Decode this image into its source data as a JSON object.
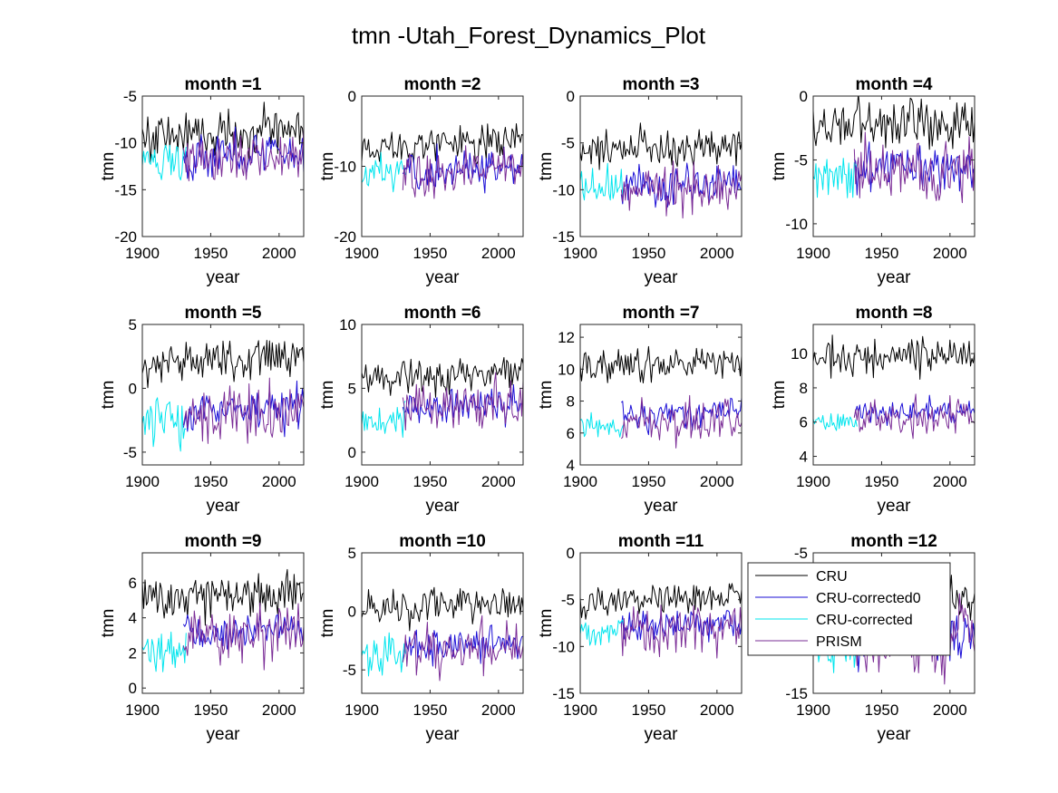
{
  "figure": {
    "title": "tmn -Utah_Forest_Dynamics_Plot"
  },
  "legend": {
    "placement": "over bottom-right subplot",
    "entries": [
      {
        "label": "CRU",
        "color": "#000000"
      },
      {
        "label": "CRU-corrected0",
        "color": "#1a0dd6"
      },
      {
        "label": "CRU-corrected",
        "color": "#00e5ee"
      },
      {
        "label": "PRISM",
        "color": "#7a2c96"
      }
    ]
  },
  "chart_data": [
    {
      "type": "line",
      "title": "month =1",
      "xlabel": "year",
      "ylabel": "tmn",
      "xlim": [
        1900,
        2018
      ],
      "ylim": [
        -20,
        -5
      ],
      "xticks": [
        1900,
        1950,
        2000
      ],
      "yticks": [
        -20,
        -15,
        -10,
        -5
      ],
      "series": [
        {
          "name": "CRU",
          "mean": -8.9,
          "amp": 1.9,
          "from": 1900
        },
        {
          "name": "CRU-corrected0",
          "mean": -11.3,
          "amp": 1.9,
          "from": 1930
        },
        {
          "name": "CRU-corrected",
          "mean": -11.5,
          "amp": 1.6,
          "from": 1900,
          "to": 1932
        },
        {
          "name": "PRISM",
          "mean": -11.6,
          "amp": 2.2,
          "from": 1930
        }
      ]
    },
    {
      "type": "line",
      "title": "month =2",
      "xlabel": "year",
      "ylabel": "tmn",
      "xlim": [
        1900,
        2018
      ],
      "ylim": [
        -20,
        0
      ],
      "xticks": [
        1900,
        1950,
        2000
      ],
      "yticks": [
        -20,
        -10,
        0
      ],
      "series": [
        {
          "name": "CRU",
          "mean": -6.8,
          "amp": 1.8,
          "from": 1900
        },
        {
          "name": "CRU-corrected0",
          "mean": -10.4,
          "amp": 2.0,
          "from": 1930
        },
        {
          "name": "CRU-corrected",
          "mean": -10.6,
          "amp": 2.0,
          "from": 1900,
          "to": 1932
        },
        {
          "name": "PRISM",
          "mean": -10.7,
          "amp": 2.4,
          "from": 1930
        }
      ]
    },
    {
      "type": "line",
      "title": "month =3",
      "xlabel": "year",
      "ylabel": "tmn",
      "xlim": [
        1900,
        2018
      ],
      "ylim": [
        -15,
        0
      ],
      "xticks": [
        1900,
        1950,
        2000
      ],
      "yticks": [
        -15,
        -10,
        -5,
        0
      ],
      "series": [
        {
          "name": "CRU",
          "mean": -5.5,
          "amp": 1.4,
          "from": 1900
        },
        {
          "name": "CRU-corrected0",
          "mean": -9.6,
          "amp": 1.5,
          "from": 1930
        },
        {
          "name": "CRU-corrected",
          "mean": -9.4,
          "amp": 1.5,
          "from": 1900,
          "to": 1932
        },
        {
          "name": "PRISM",
          "mean": -9.9,
          "amp": 1.8,
          "from": 1930
        }
      ]
    },
    {
      "type": "line",
      "title": "month =4",
      "xlabel": "year",
      "ylabel": "tmn",
      "xlim": [
        1900,
        2018
      ],
      "ylim": [
        -11,
        0
      ],
      "xticks": [
        1900,
        1950,
        2000
      ],
      "yticks": [
        -10,
        -5,
        0
      ],
      "series": [
        {
          "name": "CRU",
          "mean": -2.2,
          "amp": 1.4,
          "from": 1900
        },
        {
          "name": "CRU-corrected0",
          "mean": -5.6,
          "amp": 1.4,
          "from": 1930
        },
        {
          "name": "CRU-corrected",
          "mean": -6.2,
          "amp": 1.5,
          "from": 1900,
          "to": 1932
        },
        {
          "name": "PRISM",
          "mean": -6.0,
          "amp": 1.8,
          "from": 1930
        }
      ]
    },
    {
      "type": "line",
      "title": "month =5",
      "xlabel": "year",
      "ylabel": "tmn",
      "xlim": [
        1900,
        2018
      ],
      "ylim": [
        -6,
        5
      ],
      "xticks": [
        1900,
        1950,
        2000
      ],
      "yticks": [
        -5,
        0,
        5
      ],
      "series": [
        {
          "name": "CRU",
          "mean": 2.2,
          "amp": 1.2,
          "from": 1900
        },
        {
          "name": "CRU-corrected0",
          "mean": -1.7,
          "amp": 1.2,
          "from": 1930
        },
        {
          "name": "CRU-corrected",
          "mean": -2.3,
          "amp": 1.5,
          "from": 1900,
          "to": 1932
        },
        {
          "name": "PRISM",
          "mean": -2.0,
          "amp": 1.5,
          "from": 1930
        }
      ]
    },
    {
      "type": "line",
      "title": "month =6",
      "xlabel": "year",
      "ylabel": "tmn",
      "xlim": [
        1900,
        2018
      ],
      "ylim": [
        -1,
        10
      ],
      "xticks": [
        1900,
        1950,
        2000
      ],
      "yticks": [
        0,
        5,
        10
      ],
      "series": [
        {
          "name": "CRU",
          "mean": 6.0,
          "amp": 1.0,
          "from": 1900
        },
        {
          "name": "CRU-corrected0",
          "mean": 3.6,
          "amp": 1.0,
          "from": 1930
        },
        {
          "name": "CRU-corrected",
          "mean": 2.8,
          "amp": 1.1,
          "from": 1900,
          "to": 1932
        },
        {
          "name": "PRISM",
          "mean": 3.6,
          "amp": 1.4,
          "from": 1930
        }
      ]
    },
    {
      "type": "line",
      "title": "month =7",
      "xlabel": "year",
      "ylabel": "tmn",
      "xlim": [
        1900,
        2018
      ],
      "ylim": [
        4,
        12.8
      ],
      "xticks": [
        1900,
        1950,
        2000
      ],
      "yticks": [
        4,
        6,
        8,
        10,
        12
      ],
      "series": [
        {
          "name": "CRU",
          "mean": 10.3,
          "amp": 0.8,
          "from": 1900
        },
        {
          "name": "CRU-corrected0",
          "mean": 7.2,
          "amp": 0.7,
          "from": 1930
        },
        {
          "name": "CRU-corrected",
          "mean": 6.5,
          "amp": 0.6,
          "from": 1900,
          "to": 1932
        },
        {
          "name": "PRISM",
          "mean": 6.9,
          "amp": 1.1,
          "from": 1930
        }
      ]
    },
    {
      "type": "line",
      "title": "month =8",
      "xlabel": "year",
      "ylabel": "tmn",
      "xlim": [
        1900,
        2018
      ],
      "ylim": [
        3.5,
        11.7
      ],
      "xticks": [
        1900,
        1950,
        2000
      ],
      "yticks": [
        4,
        6,
        8,
        10
      ],
      "series": [
        {
          "name": "CRU",
          "mean": 9.8,
          "amp": 0.8,
          "from": 1900
        },
        {
          "name": "CRU-corrected0",
          "mean": 6.6,
          "amp": 0.5,
          "from": 1930
        },
        {
          "name": "CRU-corrected",
          "mean": 6.1,
          "amp": 0.4,
          "from": 1900,
          "to": 1932
        },
        {
          "name": "PRISM",
          "mean": 6.3,
          "amp": 0.8,
          "from": 1930
        }
      ]
    },
    {
      "type": "line",
      "title": "month =9",
      "xlabel": "year",
      "ylabel": "tmn",
      "xlim": [
        1900,
        2018
      ],
      "ylim": [
        -0.3,
        7.7
      ],
      "xticks": [
        1900,
        1950,
        2000
      ],
      "yticks": [
        0,
        2,
        4,
        6
      ],
      "series": [
        {
          "name": "CRU",
          "mean": 5.3,
          "amp": 1.0,
          "from": 1900
        },
        {
          "name": "CRU-corrected0",
          "mean": 3.3,
          "amp": 0.7,
          "from": 1930
        },
        {
          "name": "CRU-corrected",
          "mean": 2.4,
          "amp": 0.9,
          "from": 1900,
          "to": 1932
        },
        {
          "name": "PRISM",
          "mean": 2.8,
          "amp": 1.2,
          "from": 1930
        }
      ]
    },
    {
      "type": "line",
      "title": "month =10",
      "xlabel": "year",
      "ylabel": "tmn",
      "xlim": [
        1900,
        2018
      ],
      "ylim": [
        -7,
        5
      ],
      "xticks": [
        1900,
        1950,
        2000
      ],
      "yticks": [
        -5,
        0,
        5
      ],
      "series": [
        {
          "name": "CRU",
          "mean": 0.5,
          "amp": 1.2,
          "from": 1900
        },
        {
          "name": "CRU-corrected0",
          "mean": -2.8,
          "amp": 1.1,
          "from": 1930
        },
        {
          "name": "CRU-corrected",
          "mean": -3.4,
          "amp": 1.3,
          "from": 1900,
          "to": 1932
        },
        {
          "name": "PRISM",
          "mean": -3.4,
          "amp": 1.6,
          "from": 1930
        }
      ]
    },
    {
      "type": "line",
      "title": "month =11",
      "xlabel": "year",
      "ylabel": "tmn",
      "xlim": [
        1900,
        2018
      ],
      "ylim": [
        -15,
        0
      ],
      "xticks": [
        1900,
        1950,
        2000
      ],
      "yticks": [
        -15,
        -10,
        -5,
        0
      ],
      "series": [
        {
          "name": "CRU",
          "mean": -5.0,
          "amp": 1.2,
          "from": 1900
        },
        {
          "name": "CRU-corrected0",
          "mean": -7.8,
          "amp": 1.3,
          "from": 1930
        },
        {
          "name": "CRU-corrected",
          "mean": -8.0,
          "amp": 1.2,
          "from": 1900,
          "to": 1932
        },
        {
          "name": "PRISM",
          "mean": -8.4,
          "amp": 1.9,
          "from": 1930
        }
      ]
    },
    {
      "type": "line",
      "title": "month =12",
      "xlabel": "year",
      "ylabel": "",
      "xlim": [
        1900,
        2018
      ],
      "ylim": [
        -15,
        -5
      ],
      "xticks": [
        1900,
        1950,
        2000
      ],
      "yticks": [
        -15,
        -5
      ],
      "series": [
        {
          "name": "CRU",
          "mean": -8.8,
          "amp": 1.5,
          "from": 1900
        },
        {
          "name": "CRU-corrected0",
          "mean": -11.2,
          "amp": 1.5,
          "from": 1930
        },
        {
          "name": "CRU-corrected",
          "mean": -11.5,
          "amp": 1.4,
          "from": 1900,
          "to": 1932
        },
        {
          "name": "PRISM",
          "mean": -11.6,
          "amp": 1.9,
          "from": 1930
        }
      ]
    }
  ]
}
